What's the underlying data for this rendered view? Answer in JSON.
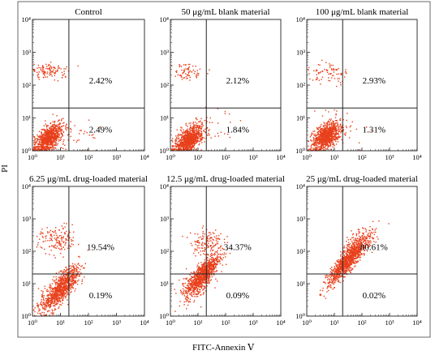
{
  "figure": {
    "y_axis_label": "PI",
    "x_axis_label": "FITC-Annexin Ⅴ"
  },
  "chart_data": [
    {
      "type": "scatter",
      "title": "Control",
      "xlim": [
        1,
        10000
      ],
      "ylim": [
        1,
        10000
      ],
      "x_scale": "log",
      "y_scale": "log",
      "x_ticks": [
        "10⁰",
        "10¹",
        "10²",
        "10³",
        "10⁴"
      ],
      "y_ticks": [
        "10⁰",
        "10¹",
        "10²",
        "10³",
        "10⁴"
      ],
      "quadrant_gate": {
        "x": 20,
        "y": 20
      },
      "quadrant_percentages": {
        "upper_right": "2.42%",
        "lower_right": "2.49%"
      },
      "point_color": "#e8401c"
    },
    {
      "type": "scatter",
      "title": "50 μg/mL blank material",
      "xlim": [
        1,
        10000
      ],
      "ylim": [
        1,
        10000
      ],
      "x_scale": "log",
      "y_scale": "log",
      "x_ticks": [
        "10⁰",
        "10¹",
        "10²",
        "10³",
        "10⁴"
      ],
      "y_ticks": [
        "10⁰",
        "10¹",
        "10²",
        "10³",
        "10⁴"
      ],
      "quadrant_gate": {
        "x": 20,
        "y": 20
      },
      "quadrant_percentages": {
        "upper_right": "2.12%",
        "lower_right": "1.84%"
      },
      "point_color": "#e8401c"
    },
    {
      "type": "scatter",
      "title": "100 μg/mL blank material",
      "xlim": [
        1,
        10000
      ],
      "ylim": [
        1,
        10000
      ],
      "x_scale": "log",
      "y_scale": "log",
      "x_ticks": [
        "10⁰",
        "10¹",
        "10²",
        "10³",
        "10⁴"
      ],
      "y_ticks": [
        "10⁰",
        "10¹",
        "10²",
        "10³",
        "10⁴"
      ],
      "quadrant_gate": {
        "x": 20,
        "y": 20
      },
      "quadrant_percentages": {
        "upper_right": "2.93%",
        "lower_right": "1.31%"
      },
      "point_color": "#e8401c"
    },
    {
      "type": "scatter",
      "title": "6.25 μg/mL drug-loaded material",
      "xlim": [
        1,
        10000
      ],
      "ylim": [
        1,
        10000
      ],
      "x_scale": "log",
      "y_scale": "log",
      "x_ticks": [
        "10⁰",
        "10¹",
        "10²",
        "10³",
        "10⁴"
      ],
      "y_ticks": [
        "10⁰",
        "10¹",
        "10²",
        "10³",
        "10⁴"
      ],
      "quadrant_gate": {
        "x": 20,
        "y": 20
      },
      "quadrant_percentages": {
        "upper_right": "19.54%",
        "lower_right": "0.19%"
      },
      "point_color": "#e8401c"
    },
    {
      "type": "scatter",
      "title": "12.5 μg/mL drug-loaded material",
      "xlim": [
        1,
        10000
      ],
      "ylim": [
        1,
        10000
      ],
      "x_scale": "log",
      "y_scale": "log",
      "x_ticks": [
        "10⁰",
        "10¹",
        "10²",
        "10³",
        "10⁴"
      ],
      "y_ticks": [
        "10⁰",
        "10¹",
        "10²",
        "10³",
        "10⁴"
      ],
      "quadrant_gate": {
        "x": 20,
        "y": 20
      },
      "quadrant_percentages": {
        "upper_right": "34.37%",
        "lower_right": "0.09%"
      },
      "point_color": "#e8401c"
    },
    {
      "type": "scatter",
      "title": "25 μg/mL drug-loaded material",
      "xlim": [
        1,
        10000
      ],
      "ylim": [
        1,
        10000
      ],
      "x_scale": "log",
      "y_scale": "log",
      "x_ticks": [
        "10⁰",
        "10¹",
        "10²",
        "10³",
        "10⁴"
      ],
      "y_ticks": [
        "10⁰",
        "10¹",
        "10²",
        "10³",
        "10⁴"
      ],
      "quadrant_gate": {
        "x": 20,
        "y": 20
      },
      "quadrant_percentages": {
        "upper_right": "80.61%",
        "lower_right": "0.02%"
      },
      "point_color": "#e8401c"
    }
  ]
}
